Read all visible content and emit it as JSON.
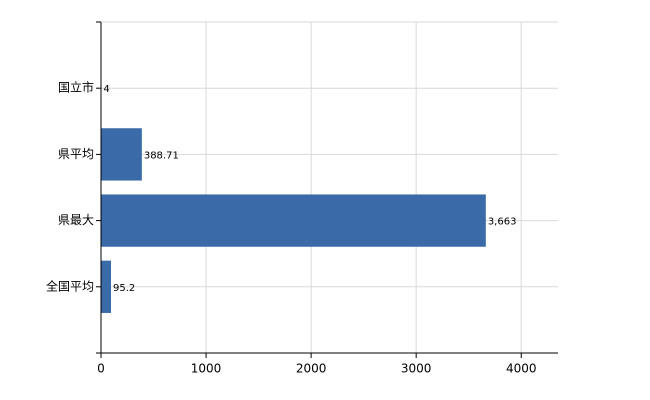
{
  "chart_data": {
    "type": "bar",
    "orientation": "horizontal",
    "categories": [
      "国立市",
      "県平均",
      "県最大",
      "全国平均"
    ],
    "values": [
      4,
      388.71,
      3663,
      95.2
    ],
    "value_labels": [
      "4",
      "388.71",
      "3,663",
      "95.2"
    ],
    "color": "#3a6aa8",
    "xlim": [
      0,
      4350
    ],
    "xticks": [
      0,
      1000,
      2000,
      3000,
      4000
    ],
    "grid": true
  }
}
